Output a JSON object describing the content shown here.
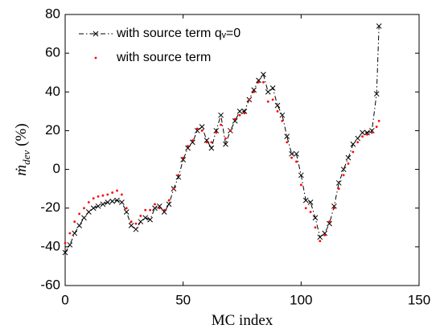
{
  "chart_data": {
    "type": "line",
    "xlabel": "MC index",
    "ylabel": {
      "symbol": "ṁ",
      "subscript": "dev",
      "unit": "(%)"
    },
    "xlim": [
      0,
      150
    ],
    "xticks": [
      0,
      50,
      100,
      150
    ],
    "ylim": [
      -60,
      80
    ],
    "yticks": [
      -60,
      -40,
      -20,
      0,
      20,
      40,
      60,
      80
    ],
    "legend": "upper left",
    "x": [
      0,
      2,
      4,
      6,
      8,
      10,
      12,
      14,
      16,
      18,
      20,
      22,
      24,
      26,
      28,
      30,
      32,
      34,
      36,
      38,
      40,
      42,
      44,
      46,
      48,
      50,
      52,
      54,
      56,
      58,
      60,
      62,
      64,
      66,
      68,
      70,
      72,
      74,
      76,
      78,
      80,
      82,
      84,
      86,
      88,
      90,
      92,
      94,
      96,
      98,
      100,
      102,
      104,
      106,
      108,
      110,
      112,
      114,
      116,
      118,
      120,
      122,
      124,
      126,
      128,
      130,
      132,
      133
    ],
    "series": [
      {
        "name": "with source term qᵥ=0",
        "color": "#000000",
        "marker": "x",
        "linestyle": "dashdot",
        "values": [
          -43,
          -39,
          -33,
          -29,
          -25,
          -22,
          -20,
          -19,
          -18,
          -17,
          -16.5,
          -16,
          -17,
          -22,
          -29,
          -31,
          -27,
          -25,
          -26,
          -20,
          -19,
          -22,
          -18,
          -10,
          -4,
          5,
          11,
          14,
          20,
          22,
          15,
          11,
          20,
          28,
          13,
          20,
          25,
          30,
          30,
          36,
          41,
          46,
          49,
          40,
          42,
          33,
          28,
          17,
          8,
          8,
          -3,
          -16,
          -17,
          -25,
          -35,
          -33,
          -28,
          -19,
          -7,
          0,
          6,
          13,
          16,
          19,
          19,
          20,
          39,
          74
        ]
      },
      {
        "name": "with source term",
        "color": "#ff0000",
        "marker": "dot",
        "linestyle": "none",
        "values": [
          -38,
          -33,
          -27,
          -23,
          -20,
          -17,
          -15,
          -14,
          -13.5,
          -13,
          -12,
          -11,
          -13,
          -20,
          -27,
          -28,
          -24,
          -21,
          -21,
          -18,
          -20,
          -21,
          -16,
          -10,
          -3,
          6,
          12,
          15,
          21,
          20,
          14,
          14,
          19,
          23,
          16,
          20,
          26,
          28,
          29,
          36,
          40,
          45,
          45,
          35,
          36,
          30,
          25,
          14,
          6,
          4,
          -8,
          -20,
          -22,
          -30,
          -37,
          -34,
          -27,
          -20,
          -10,
          -3,
          3,
          9,
          14,
          17,
          18,
          19,
          22,
          25
        ]
      }
    ]
  }
}
